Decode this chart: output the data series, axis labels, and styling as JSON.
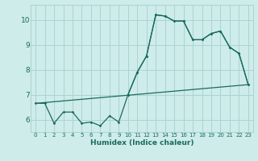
{
  "xlabel": "Humidex (Indice chaleur)",
  "bg_color": "#ceecea",
  "grid_color": "#aad4d0",
  "line_color": "#1a6b5a",
  "xlim": [
    -0.5,
    23.5
  ],
  "ylim": [
    5.5,
    10.6
  ],
  "yticks": [
    6,
    7,
    8,
    9,
    10
  ],
  "xticks": [
    0,
    1,
    2,
    3,
    4,
    5,
    6,
    7,
    8,
    9,
    10,
    11,
    12,
    13,
    14,
    15,
    16,
    17,
    18,
    19,
    20,
    21,
    22,
    23
  ],
  "line1_x": [
    0,
    1,
    2,
    3,
    4,
    5,
    6,
    7,
    8,
    9,
    10,
    11,
    12,
    13,
    14,
    15,
    16,
    17,
    18,
    19,
    20,
    21,
    22,
    23
  ],
  "line1_y": [
    6.65,
    6.65,
    5.85,
    6.3,
    6.3,
    5.85,
    5.9,
    5.75,
    6.15,
    5.9,
    7.0,
    7.9,
    8.55,
    10.2,
    10.15,
    9.95,
    9.95,
    9.2,
    9.2,
    9.45,
    9.55,
    8.9,
    8.65,
    7.4
  ],
  "line2_x": [
    0,
    23
  ],
  "line2_y": [
    6.65,
    7.4
  ],
  "line3_x": [
    10,
    11,
    12,
    13,
    14,
    15,
    16,
    17,
    18,
    19,
    20,
    21,
    22,
    23
  ],
  "line3_y": [
    7.0,
    7.9,
    8.55,
    10.2,
    10.15,
    9.95,
    9.95,
    9.2,
    9.2,
    9.45,
    9.55,
    8.9,
    8.65,
    7.4
  ]
}
